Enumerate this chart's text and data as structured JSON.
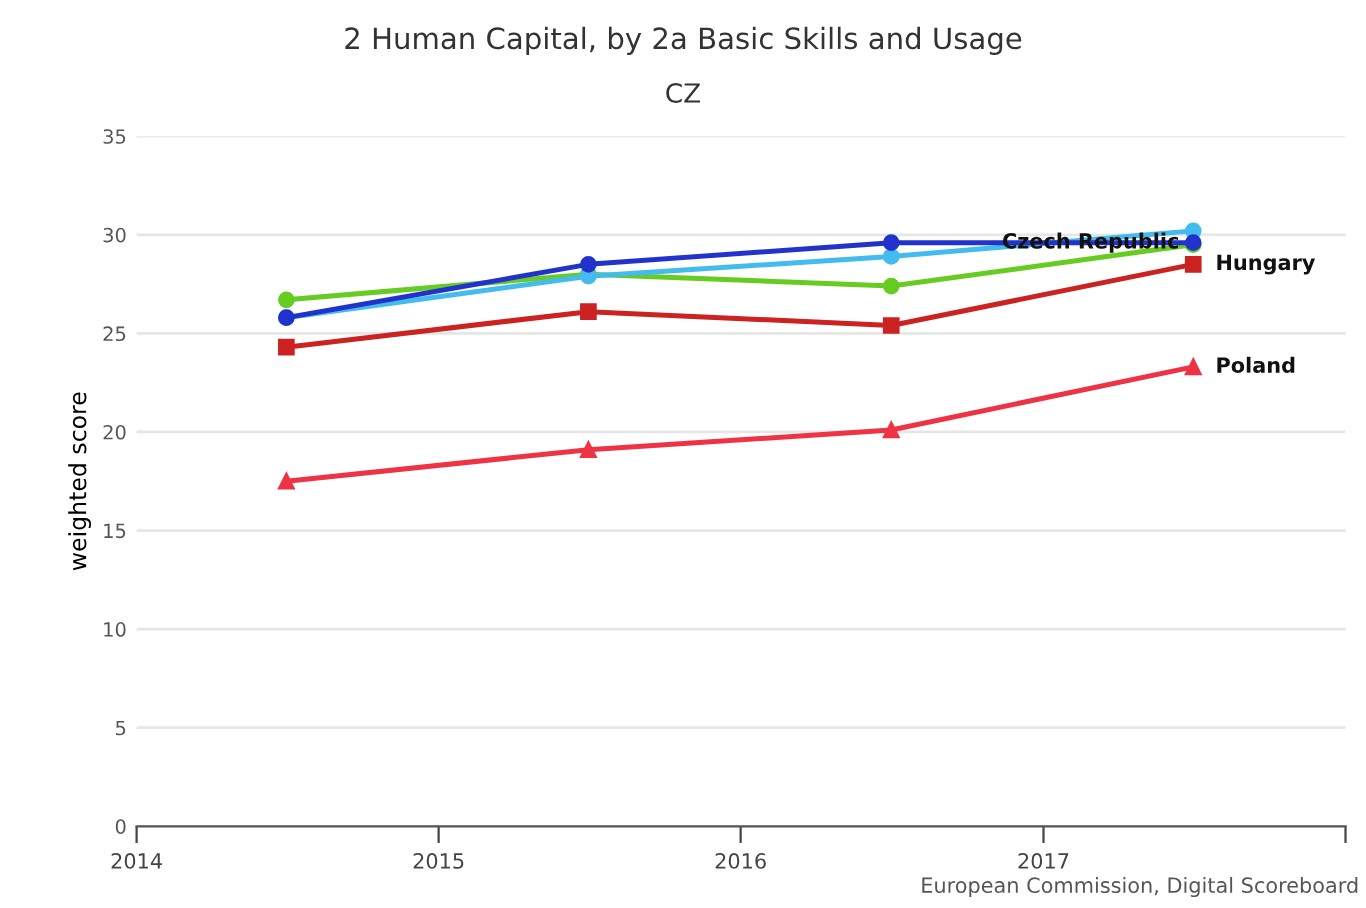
{
  "chart_data": {
    "type": "line",
    "title": "2 Human Capital, by 2a Basic Skills and Usage",
    "subtitle": "CZ",
    "ylabel": "weighted score",
    "x": [
      "2014-07",
      "2015-07",
      "2016-07",
      "2017-07"
    ],
    "xlim": [
      "2014-01",
      "2018-01"
    ],
    "xticks": [
      {
        "value": "2014-01",
        "label": "2014"
      },
      {
        "value": "2015-01",
        "label": "2015"
      },
      {
        "value": "2016-01",
        "label": "2016"
      },
      {
        "value": "2017-01",
        "label": "2017"
      },
      {
        "value": "2018-01",
        "label": null
      }
    ],
    "ylim": [
      0,
      35
    ],
    "yticks": [
      0,
      5,
      10,
      15,
      20,
      25,
      30,
      35
    ],
    "grid": "y",
    "legend": false,
    "series": [
      {
        "color": "#66cc22",
        "marker": "circle",
        "values": [
          26.7,
          28.0,
          27.4,
          29.5
        ]
      },
      {
        "color": "#44bbee",
        "marker": "circle",
        "values": [
          25.8,
          27.9,
          28.9,
          30.2
        ]
      },
      {
        "name": "Czech Republic",
        "color": "#2233cc",
        "marker": "circle",
        "values": [
          25.8,
          28.5,
          29.6,
          29.6
        ]
      },
      {
        "name": "Hungary",
        "color": "#cc2222",
        "marker": "square",
        "values": [
          24.3,
          26.1,
          25.4,
          28.5
        ]
      },
      {
        "name": "Poland",
        "color": "#ee3344",
        "marker": "triangle",
        "values": [
          17.5,
          19.1,
          20.1,
          23.3
        ]
      }
    ],
    "annotations": [
      "European Commission, Digital Scoreboard"
    ]
  }
}
